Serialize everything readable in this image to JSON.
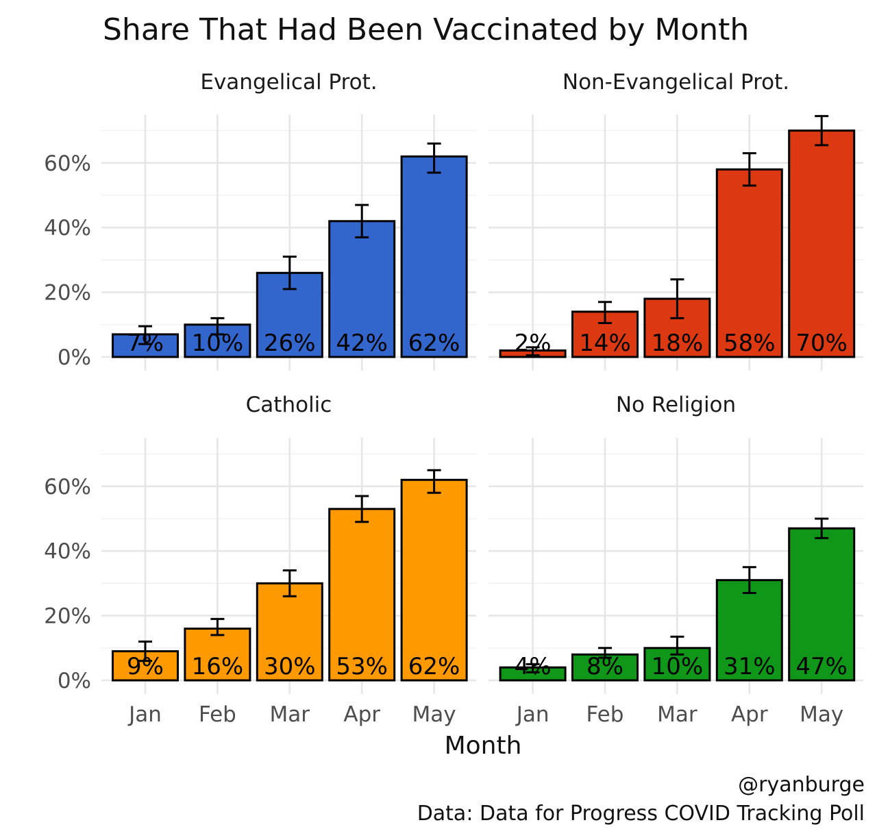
{
  "chart_data": {
    "type": "bar",
    "title": "Share That Had Been Vaccinated by Month",
    "xlabel": "Month",
    "ylabel": "",
    "ylim": [
      0,
      0.75
    ],
    "y_ticks": [
      0,
      0.2,
      0.4,
      0.6
    ],
    "y_tick_labels": [
      "0%",
      "20%",
      "40%",
      "60%"
    ],
    "categories": [
      "Jan",
      "Feb",
      "Mar",
      "Apr",
      "May"
    ],
    "grid": true,
    "legend": "none",
    "panels": [
      {
        "name": "Evangelical Prot.",
        "color": "#3366CC",
        "values": [
          0.07,
          0.1,
          0.26,
          0.42,
          0.62
        ],
        "labels": [
          "7%",
          "10%",
          "26%",
          "42%",
          "62%"
        ],
        "err_low": [
          0.04,
          0.07,
          0.21,
          0.37,
          0.57
        ],
        "err_high": [
          0.095,
          0.12,
          0.31,
          0.47,
          0.66
        ]
      },
      {
        "name": "Non-Evangelical Prot.",
        "color": "#DC3912",
        "values": [
          0.02,
          0.14,
          0.18,
          0.58,
          0.7
        ],
        "labels": [
          "2%",
          "14%",
          "18%",
          "58%",
          "70%"
        ],
        "err_low": [
          0.005,
          0.105,
          0.12,
          0.53,
          0.655
        ],
        "err_high": [
          0.03,
          0.17,
          0.24,
          0.63,
          0.745
        ]
      },
      {
        "name": "Catholic",
        "color": "#FF9900",
        "values": [
          0.09,
          0.16,
          0.3,
          0.53,
          0.62
        ],
        "labels": [
          "9%",
          "16%",
          "30%",
          "53%",
          "62%"
        ],
        "err_low": [
          0.06,
          0.14,
          0.26,
          0.49,
          0.58
        ],
        "err_high": [
          0.12,
          0.19,
          0.34,
          0.57,
          0.65
        ]
      },
      {
        "name": "No Religion",
        "color": "#109618",
        "values": [
          0.04,
          0.08,
          0.1,
          0.31,
          0.47
        ],
        "labels": [
          "4%",
          "8%",
          "10%",
          "31%",
          "47%"
        ],
        "err_low": [
          0.025,
          0.07,
          0.08,
          0.27,
          0.44
        ],
        "err_high": [
          0.05,
          0.1,
          0.135,
          0.35,
          0.5
        ]
      }
    ],
    "caption_lines": [
      "@ryanburge",
      "Data: Data for Progress COVID Tracking Poll"
    ]
  }
}
